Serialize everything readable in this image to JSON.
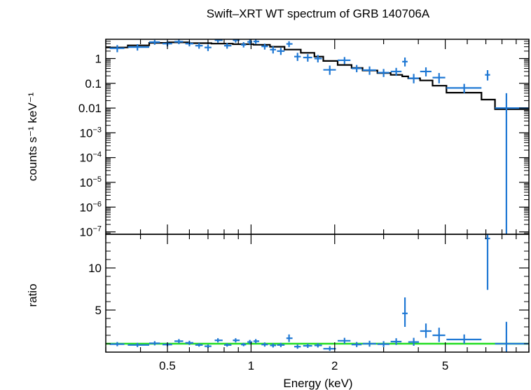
{
  "chart_data": {
    "type": "scatter",
    "title": "Swift–XRT WT spectrum of GRB 140706A",
    "xlabel": "Energy (keV)",
    "x_scale": "log",
    "xlim": [
      0.3,
      10
    ],
    "x_ticks": [
      {
        "value": 0.5,
        "label": "0.5"
      },
      {
        "value": 1,
        "label": "1"
      },
      {
        "value": 2,
        "label": "2"
      },
      {
        "value": 5,
        "label": "5"
      }
    ],
    "panels": [
      {
        "name": "spectrum",
        "ylabel": "counts s⁻¹ keV⁻¹",
        "y_scale": "log",
        "ylim": [
          8e-08,
          6
        ],
        "y_ticks": [
          {
            "value": 1,
            "label": "1"
          },
          {
            "value": 0.1,
            "label": "0.1"
          },
          {
            "value": 0.01,
            "label": "0.01"
          },
          {
            "value": 0.001,
            "base": "10",
            "exp": "−3"
          },
          {
            "value": 0.0001,
            "base": "10",
            "exp": "−4"
          },
          {
            "value": 1e-05,
            "base": "10",
            "exp": "−5"
          },
          {
            "value": 1e-06,
            "base": "10",
            "exp": "−6"
          },
          {
            "value": 1e-07,
            "base": "10",
            "exp": "−7"
          }
        ],
        "data_color": "#1f78d4",
        "data": [
          {
            "x": 0.33,
            "xlo": 0.31,
            "xhi": 0.35,
            "y": 2.6,
            "ylo": 1.8,
            "yhi": 3.5
          },
          {
            "x": 0.39,
            "xlo": 0.36,
            "xhi": 0.43,
            "y": 2.9,
            "ylo": 2.1,
            "yhi": 3.8
          },
          {
            "x": 0.45,
            "xlo": 0.43,
            "xhi": 0.47,
            "y": 4.6,
            "ylo": 3.6,
            "yhi": 5.6
          },
          {
            "x": 0.5,
            "xlo": 0.48,
            "xhi": 0.52,
            "y": 4.0,
            "ylo": 3.1,
            "yhi": 5.0
          },
          {
            "x": 0.55,
            "xlo": 0.53,
            "xhi": 0.57,
            "y": 4.8,
            "ylo": 3.8,
            "yhi": 5.8
          },
          {
            "x": 0.6,
            "xlo": 0.58,
            "xhi": 0.62,
            "y": 4.0,
            "ylo": 3.1,
            "yhi": 5.0
          },
          {
            "x": 0.65,
            "xlo": 0.63,
            "xhi": 0.67,
            "y": 3.3,
            "ylo": 2.5,
            "yhi": 4.2
          },
          {
            "x": 0.7,
            "xlo": 0.68,
            "xhi": 0.72,
            "y": 2.8,
            "ylo": 2.0,
            "yhi": 3.7
          },
          {
            "x": 0.76,
            "xlo": 0.74,
            "xhi": 0.79,
            "y": 5.5,
            "ylo": 4.4,
            "yhi": 6.0
          },
          {
            "x": 0.82,
            "xlo": 0.8,
            "xhi": 0.85,
            "y": 3.3,
            "ylo": 2.5,
            "yhi": 4.2
          },
          {
            "x": 0.88,
            "xlo": 0.86,
            "xhi": 0.91,
            "y": 5.5,
            "ylo": 4.4,
            "yhi": 6.0
          },
          {
            "x": 0.94,
            "xlo": 0.92,
            "xhi": 0.96,
            "y": 3.6,
            "ylo": 2.8,
            "yhi": 4.6
          },
          {
            "x": 0.99,
            "xlo": 0.97,
            "xhi": 1.01,
            "y": 4.7,
            "ylo": 3.7,
            "yhi": 5.8
          },
          {
            "x": 1.04,
            "xlo": 1.02,
            "xhi": 1.07,
            "y": 4.9,
            "ylo": 3.9,
            "yhi": 5.9
          },
          {
            "x": 1.12,
            "xlo": 1.09,
            "xhi": 1.15,
            "y": 3.1,
            "ylo": 2.3,
            "yhi": 4.0
          },
          {
            "x": 1.2,
            "xlo": 1.17,
            "xhi": 1.23,
            "y": 2.3,
            "ylo": 1.6,
            "yhi": 3.1
          },
          {
            "x": 1.28,
            "xlo": 1.24,
            "xhi": 1.32,
            "y": 2.0,
            "ylo": 1.4,
            "yhi": 2.7
          },
          {
            "x": 1.37,
            "xlo": 1.34,
            "xhi": 1.41,
            "y": 3.9,
            "ylo": 2.9,
            "yhi": 5.0
          },
          {
            "x": 1.47,
            "xlo": 1.43,
            "xhi": 1.51,
            "y": 1.2,
            "ylo": 0.8,
            "yhi": 1.7
          },
          {
            "x": 1.6,
            "xlo": 1.54,
            "xhi": 1.66,
            "y": 1.1,
            "ylo": 0.75,
            "yhi": 1.5
          },
          {
            "x": 1.74,
            "xlo": 1.69,
            "xhi": 1.8,
            "y": 1.0,
            "ylo": 0.7,
            "yhi": 1.4
          },
          {
            "x": 1.92,
            "xlo": 1.82,
            "xhi": 2.02,
            "y": 0.35,
            "ylo": 0.22,
            "yhi": 0.52
          },
          {
            "x": 2.17,
            "xlo": 2.05,
            "xhi": 2.28,
            "y": 0.85,
            "ylo": 0.6,
            "yhi": 1.15
          },
          {
            "x": 2.4,
            "xlo": 2.3,
            "xhi": 2.5,
            "y": 0.4,
            "ylo": 0.28,
            "yhi": 0.55
          },
          {
            "x": 2.67,
            "xlo": 2.52,
            "xhi": 2.82,
            "y": 0.34,
            "ylo": 0.22,
            "yhi": 0.48
          },
          {
            "x": 3.0,
            "xlo": 2.85,
            "xhi": 3.15,
            "y": 0.27,
            "ylo": 0.18,
            "yhi": 0.38
          },
          {
            "x": 3.33,
            "xlo": 3.18,
            "xhi": 3.48,
            "y": 0.3,
            "ylo": 0.2,
            "yhi": 0.42
          },
          {
            "x": 3.58,
            "xlo": 3.5,
            "xhi": 3.66,
            "y": 0.75,
            "ylo": 0.48,
            "yhi": 1.1
          },
          {
            "x": 3.85,
            "xlo": 3.68,
            "xhi": 4.02,
            "y": 0.16,
            "ylo": 0.1,
            "yhi": 0.24
          },
          {
            "x": 4.26,
            "xlo": 4.06,
            "xhi": 4.46,
            "y": 0.3,
            "ylo": 0.19,
            "yhi": 0.44
          },
          {
            "x": 4.75,
            "xlo": 4.5,
            "xhi": 5.0,
            "y": 0.17,
            "ylo": 0.1,
            "yhi": 0.26
          },
          {
            "x": 5.85,
            "xlo": 5.05,
            "xhi": 6.75,
            "y": 0.065,
            "ylo": 0.04,
            "yhi": 0.095
          },
          {
            "x": 7.1,
            "xlo": 6.95,
            "xhi": 7.25,
            "y": 0.22,
            "ylo": 0.13,
            "yhi": 0.34
          },
          {
            "x": 8.3,
            "xlo": 7.55,
            "xhi": 9.95,
            "y": 0.01,
            "ylo": 8e-08,
            "yhi": 0.04
          }
        ],
        "model_color": "#000000",
        "model_steps": [
          {
            "x0": 0.3,
            "x1": 0.36,
            "y": 2.8
          },
          {
            "x0": 0.36,
            "x1": 0.43,
            "y": 3.4
          },
          {
            "x0": 0.43,
            "x1": 0.5,
            "y": 4.3
          },
          {
            "x0": 0.5,
            "x1": 0.6,
            "y": 4.5
          },
          {
            "x0": 0.6,
            "x1": 0.72,
            "y": 4.2
          },
          {
            "x0": 0.72,
            "x1": 0.86,
            "y": 4.0
          },
          {
            "x0": 0.86,
            "x1": 1.02,
            "y": 3.8
          },
          {
            "x0": 1.02,
            "x1": 1.17,
            "y": 3.6
          },
          {
            "x0": 1.17,
            "x1": 1.32,
            "y": 3.0
          },
          {
            "x0": 1.32,
            "x1": 1.51,
            "y": 2.3
          },
          {
            "x0": 1.51,
            "x1": 1.69,
            "y": 1.7
          },
          {
            "x0": 1.69,
            "x1": 1.82,
            "y": 1.2
          },
          {
            "x0": 1.82,
            "x1": 2.05,
            "y": 0.8
          },
          {
            "x0": 2.05,
            "x1": 2.3,
            "y": 0.55
          },
          {
            "x0": 2.3,
            "x1": 2.52,
            "y": 0.42
          },
          {
            "x0": 2.52,
            "x1": 2.85,
            "y": 0.33
          },
          {
            "x0": 2.85,
            "x1": 3.18,
            "y": 0.26
          },
          {
            "x0": 3.18,
            "x1": 3.5,
            "y": 0.22
          },
          {
            "x0": 3.5,
            "x1": 3.68,
            "y": 0.19
          },
          {
            "x0": 3.68,
            "x1": 4.06,
            "y": 0.16
          },
          {
            "x0": 4.06,
            "x1": 4.5,
            "y": 0.13
          },
          {
            "x0": 4.5,
            "x1": 5.05,
            "y": 0.08
          },
          {
            "x0": 5.05,
            "x1": 6.75,
            "y": 0.042
          },
          {
            "x0": 6.75,
            "x1": 7.55,
            "y": 0.022
          },
          {
            "x0": 7.55,
            "x1": 10.0,
            "y": 0.009
          }
        ]
      },
      {
        "name": "ratio",
        "ylabel": "ratio",
        "y_scale": "linear",
        "ylim": [
          0,
          14
        ],
        "y_ticks": [
          {
            "value": 5,
            "label": "5"
          },
          {
            "value": 10,
            "label": "10"
          }
        ],
        "data_color": "#1f78d4",
        "data": [
          {
            "x": 0.33,
            "xlo": 0.31,
            "xhi": 0.35,
            "y": 0.95,
            "ylo": 0.7,
            "yhi": 1.2
          },
          {
            "x": 0.39,
            "xlo": 0.36,
            "xhi": 0.43,
            "y": 0.85,
            "ylo": 0.6,
            "yhi": 1.1
          },
          {
            "x": 0.45,
            "xlo": 0.43,
            "xhi": 0.47,
            "y": 1.05,
            "ylo": 0.8,
            "yhi": 1.3
          },
          {
            "x": 0.5,
            "xlo": 0.48,
            "xhi": 0.52,
            "y": 0.9,
            "ylo": 0.7,
            "yhi": 1.1
          },
          {
            "x": 0.55,
            "xlo": 0.53,
            "xhi": 0.57,
            "y": 1.3,
            "ylo": 1.05,
            "yhi": 1.55
          },
          {
            "x": 0.6,
            "xlo": 0.58,
            "xhi": 0.62,
            "y": 1.1,
            "ylo": 0.85,
            "yhi": 1.35
          },
          {
            "x": 0.65,
            "xlo": 0.63,
            "xhi": 0.67,
            "y": 0.85,
            "ylo": 0.65,
            "yhi": 1.05
          },
          {
            "x": 0.7,
            "xlo": 0.68,
            "xhi": 0.72,
            "y": 0.7,
            "ylo": 0.5,
            "yhi": 0.9
          },
          {
            "x": 0.76,
            "xlo": 0.74,
            "xhi": 0.79,
            "y": 1.4,
            "ylo": 1.15,
            "yhi": 1.65
          },
          {
            "x": 0.82,
            "xlo": 0.8,
            "xhi": 0.85,
            "y": 0.85,
            "ylo": 0.65,
            "yhi": 1.05
          },
          {
            "x": 0.88,
            "xlo": 0.86,
            "xhi": 0.91,
            "y": 1.4,
            "ylo": 1.15,
            "yhi": 1.65
          },
          {
            "x": 0.94,
            "xlo": 0.92,
            "xhi": 0.96,
            "y": 0.9,
            "ylo": 0.7,
            "yhi": 1.1
          },
          {
            "x": 0.99,
            "xlo": 0.97,
            "xhi": 1.01,
            "y": 1.2,
            "ylo": 0.95,
            "yhi": 1.45
          },
          {
            "x": 1.04,
            "xlo": 1.02,
            "xhi": 1.07,
            "y": 1.3,
            "ylo": 1.05,
            "yhi": 1.55
          },
          {
            "x": 1.12,
            "xlo": 1.09,
            "xhi": 1.15,
            "y": 0.9,
            "ylo": 0.65,
            "yhi": 1.15
          },
          {
            "x": 1.2,
            "xlo": 1.17,
            "xhi": 1.23,
            "y": 0.8,
            "ylo": 0.55,
            "yhi": 1.05
          },
          {
            "x": 1.28,
            "xlo": 1.24,
            "xhi": 1.32,
            "y": 0.85,
            "ylo": 0.6,
            "yhi": 1.1
          },
          {
            "x": 1.37,
            "xlo": 1.34,
            "xhi": 1.41,
            "y": 1.65,
            "ylo": 1.2,
            "yhi": 2.1
          },
          {
            "x": 1.47,
            "xlo": 1.43,
            "xhi": 1.51,
            "y": 0.65,
            "ylo": 0.4,
            "yhi": 0.9
          },
          {
            "x": 1.6,
            "xlo": 1.54,
            "xhi": 1.66,
            "y": 0.75,
            "ylo": 0.5,
            "yhi": 1.0
          },
          {
            "x": 1.74,
            "xlo": 1.69,
            "xhi": 1.8,
            "y": 0.8,
            "ylo": 0.55,
            "yhi": 1.05
          },
          {
            "x": 1.92,
            "xlo": 1.82,
            "xhi": 2.02,
            "y": 0.4,
            "ylo": 0.15,
            "yhi": 0.7
          },
          {
            "x": 2.17,
            "xlo": 2.05,
            "xhi": 2.28,
            "y": 1.35,
            "ylo": 1.0,
            "yhi": 1.7
          },
          {
            "x": 2.4,
            "xlo": 2.3,
            "xhi": 2.5,
            "y": 0.9,
            "ylo": 0.6,
            "yhi": 1.2
          },
          {
            "x": 2.67,
            "xlo": 2.52,
            "xhi": 2.82,
            "y": 1.0,
            "ylo": 0.65,
            "yhi": 1.35
          },
          {
            "x": 3.0,
            "xlo": 2.85,
            "xhi": 3.15,
            "y": 0.95,
            "ylo": 0.6,
            "yhi": 1.3
          },
          {
            "x": 3.33,
            "xlo": 3.18,
            "xhi": 3.48,
            "y": 1.25,
            "ylo": 0.85,
            "yhi": 1.65
          },
          {
            "x": 3.58,
            "xlo": 3.5,
            "xhi": 3.66,
            "y": 4.6,
            "ylo": 3.0,
            "yhi": 6.5
          },
          {
            "x": 3.85,
            "xlo": 3.68,
            "xhi": 4.02,
            "y": 1.2,
            "ylo": 0.75,
            "yhi": 1.7
          },
          {
            "x": 4.26,
            "xlo": 4.06,
            "xhi": 4.46,
            "y": 2.5,
            "ylo": 1.7,
            "yhi": 3.4
          },
          {
            "x": 4.75,
            "xlo": 4.5,
            "xhi": 5.0,
            "y": 2.0,
            "ylo": 1.2,
            "yhi": 2.9
          },
          {
            "x": 5.85,
            "xlo": 5.05,
            "xhi": 6.75,
            "y": 1.5,
            "ylo": 1.0,
            "yhi": 2.1
          },
          {
            "x": 7.1,
            "xlo": 6.95,
            "xhi": 7.25,
            "y": 13.5,
            "ylo": 7.4,
            "yhi": 14.0
          },
          {
            "x": 8.3,
            "xlo": 7.55,
            "xhi": 9.95,
            "y": 1.0,
            "ylo": 0.0,
            "yhi": 3.6
          }
        ],
        "reference_line": {
          "y": 1,
          "color": "#22dd22"
        }
      }
    ]
  }
}
